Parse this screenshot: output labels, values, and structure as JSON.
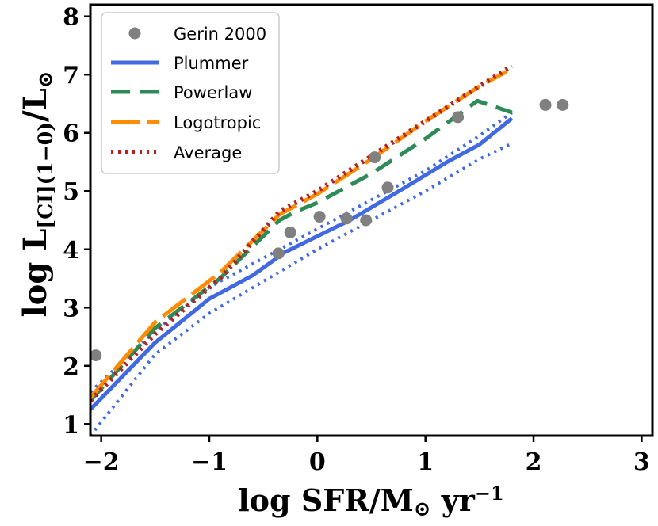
{
  "chart_data": {
    "type": "line",
    "xlabel": {
      "main": "log SFR/M",
      "sub": "⊙",
      "unit": " yr",
      "sup": "−1"
    },
    "ylabel": {
      "main": "log L",
      "sub": "[CI](1−0)",
      "tail": "/L",
      "sub2": "⊙"
    },
    "xlim": [
      -2.1,
      3.1
    ],
    "ylim": [
      0.8,
      8.2
    ],
    "xticks": [
      -2,
      -1,
      0,
      1,
      2,
      3
    ],
    "xtick_labels": [
      "−2",
      "−1",
      "0",
      "1",
      "2",
      "3"
    ],
    "yticks": [
      1,
      2,
      3,
      4,
      5,
      6,
      7,
      8
    ],
    "ytick_labels": [
      "1",
      "2",
      "3",
      "4",
      "5",
      "6",
      "7",
      "8"
    ],
    "grid": false,
    "legend_position": "top-left",
    "legend": [
      "Gerin 2000",
      "Plummer",
      "Powerlaw",
      "Logotropic",
      "Average"
    ],
    "scatter": {
      "name": "Gerin 2000",
      "color": "#808080",
      "x": [
        -2.05,
        -0.36,
        -0.25,
        0.02,
        0.27,
        0.45,
        0.53,
        0.65,
        1.3,
        2.11,
        2.27
      ],
      "y": [
        2.18,
        3.93,
        4.29,
        4.56,
        4.53,
        4.5,
        5.58,
        5.06,
        6.27,
        6.48,
        6.48
      ]
    },
    "series": [
      {
        "name": "Plummer",
        "color": "#4169e1",
        "style": "solid",
        "x": [
          -2.1,
          -1.5,
          -1.0,
          -0.6,
          -0.3,
          0.3,
          0.8,
          1.2,
          1.5,
          1.8
        ],
        "y": [
          1.25,
          2.4,
          3.15,
          3.55,
          3.95,
          4.5,
          5.05,
          5.5,
          5.8,
          6.25
        ]
      },
      {
        "name": "Plummer upper",
        "color": "#4169e1",
        "style": "dotted",
        "x": [
          -2.1,
          -1.5,
          -1.0,
          -0.5,
          0.0,
          0.5,
          1.0,
          1.5,
          1.8
        ],
        "y": [
          1.55,
          2.6,
          3.35,
          3.85,
          4.35,
          4.85,
          5.35,
          5.95,
          6.35
        ]
      },
      {
        "name": "Plummer lower",
        "color": "#4169e1",
        "style": "dotted",
        "x": [
          -2.1,
          -1.5,
          -1.0,
          -0.5,
          0.0,
          0.5,
          1.0,
          1.5,
          1.8
        ],
        "y": [
          0.8,
          2.2,
          2.9,
          3.45,
          4.0,
          4.5,
          5.0,
          5.55,
          5.82
        ]
      },
      {
        "name": "Powerlaw",
        "color": "#2e8b57",
        "style": "dashed",
        "x": [
          -2.1,
          -1.5,
          -0.9,
          -0.35,
          -0.2,
          0.0,
          0.5,
          1.0,
          1.48,
          1.8
        ],
        "y": [
          1.4,
          2.65,
          3.5,
          4.5,
          4.65,
          4.8,
          5.3,
          5.9,
          6.55,
          6.35
        ]
      },
      {
        "name": "Logotropic",
        "color": "#ff8c00",
        "style": "longdash",
        "x": [
          -2.1,
          -1.5,
          -0.9,
          -0.35,
          0.0,
          0.5,
          1.0,
          1.5,
          1.75
        ],
        "y": [
          1.45,
          2.75,
          3.6,
          4.6,
          4.95,
          5.55,
          6.2,
          6.8,
          7.05
        ]
      },
      {
        "name": "Average",
        "color": "#b22222",
        "style": "dotted",
        "x": [
          -2.1,
          -1.5,
          -0.9,
          -0.35,
          0.0,
          0.5,
          1.0,
          1.5,
          1.8
        ],
        "y": [
          1.4,
          2.55,
          3.5,
          4.65,
          5.0,
          5.6,
          6.2,
          6.8,
          7.15
        ]
      }
    ]
  }
}
